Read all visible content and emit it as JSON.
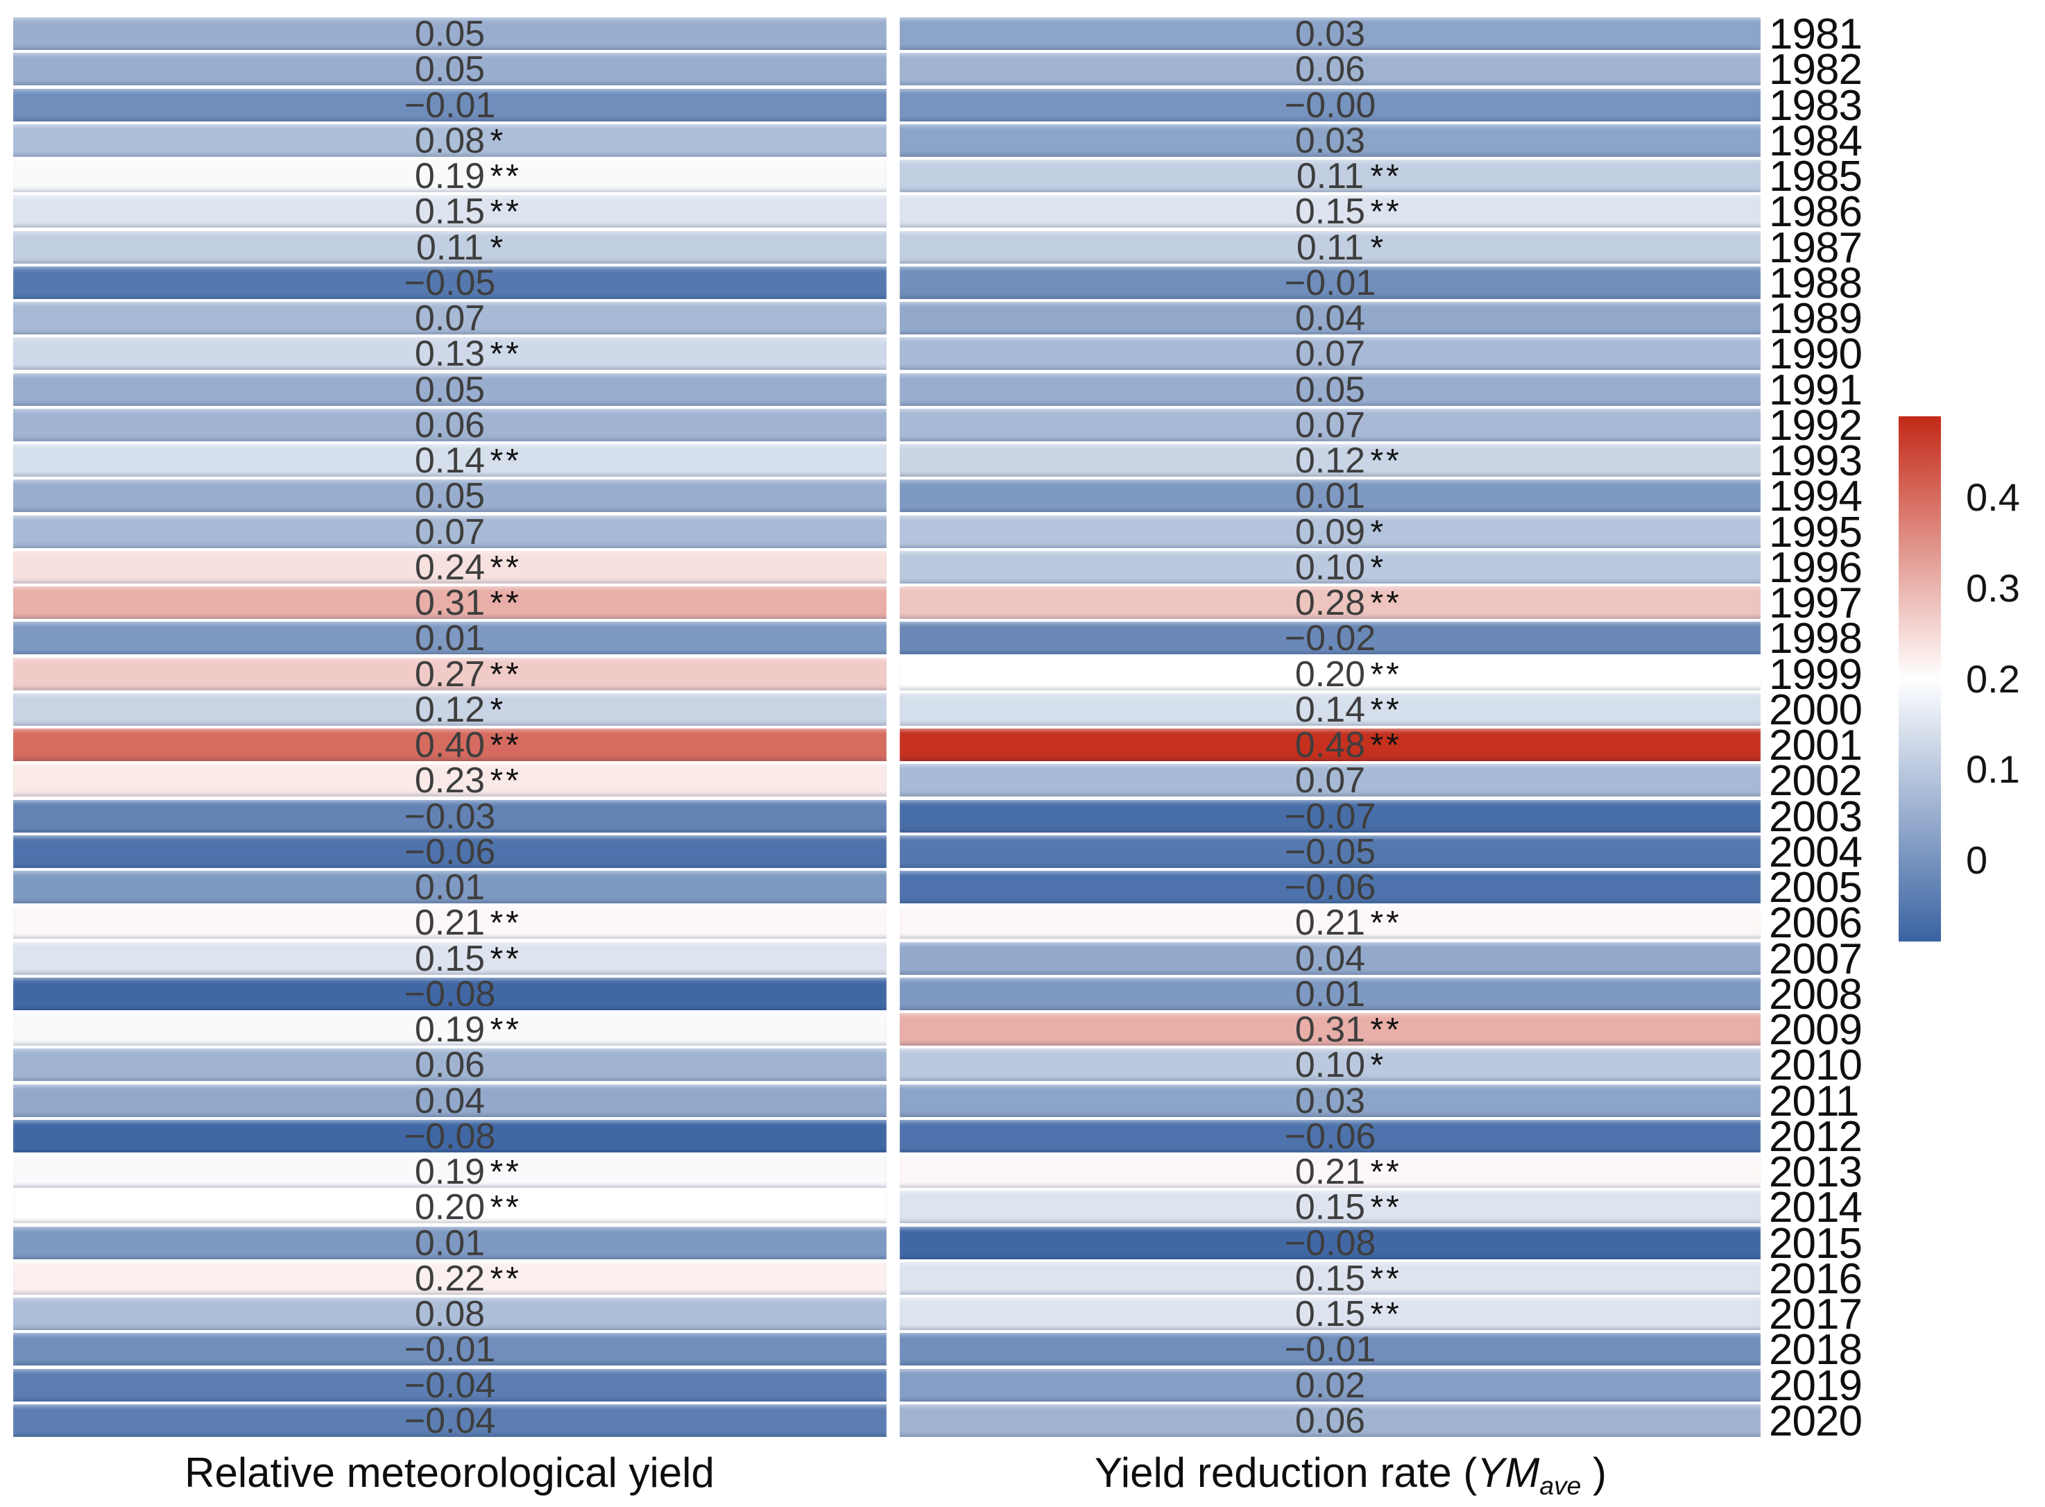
{
  "figure": {
    "left_axis_label": "Relative meteorological yield",
    "right_axis_label_prefix": "Yield reduction rate (",
    "right_axis_label_italic": "YM",
    "right_axis_label_subscript": "ave",
    "right_axis_label_suffix": " )"
  },
  "chart_data": {
    "type": "heatmap",
    "title": "",
    "xlabel_left": "Relative meteorological yield",
    "xlabel_right": "Yield reduction rate (YMave)",
    "legend_position": "right-colorbar",
    "grid": false,
    "years": [
      1981,
      1982,
      1983,
      1984,
      1985,
      1986,
      1987,
      1988,
      1989,
      1990,
      1991,
      1992,
      1993,
      1994,
      1995,
      1996,
      1997,
      1998,
      1999,
      2000,
      2001,
      2002,
      2003,
      2004,
      2005,
      2006,
      2007,
      2008,
      2009,
      2010,
      2011,
      2012,
      2013,
      2014,
      2015,
      2016,
      2017,
      2018,
      2019,
      2020
    ],
    "series": [
      {
        "name": "Relative meteorological yield",
        "cells": [
          {
            "v": 0.05,
            "label": "0.05",
            "stars": ""
          },
          {
            "v": 0.05,
            "label": "0.05",
            "stars": ""
          },
          {
            "v": -0.01,
            "label": "−0.01",
            "stars": ""
          },
          {
            "v": 0.08,
            "label": "0.08",
            "stars": "*"
          },
          {
            "v": 0.19,
            "label": "0.19",
            "stars": "**"
          },
          {
            "v": 0.15,
            "label": "0.15",
            "stars": "**"
          },
          {
            "v": 0.11,
            "label": "0.11",
            "stars": "*"
          },
          {
            "v": -0.05,
            "label": "−0.05",
            "stars": ""
          },
          {
            "v": 0.07,
            "label": "0.07",
            "stars": ""
          },
          {
            "v": 0.13,
            "label": "0.13",
            "stars": "**"
          },
          {
            "v": 0.05,
            "label": "0.05",
            "stars": ""
          },
          {
            "v": 0.06,
            "label": "0.06",
            "stars": ""
          },
          {
            "v": 0.14,
            "label": "0.14",
            "stars": "**"
          },
          {
            "v": 0.05,
            "label": "0.05",
            "stars": ""
          },
          {
            "v": 0.07,
            "label": "0.07",
            "stars": ""
          },
          {
            "v": 0.24,
            "label": "0.24",
            "stars": "**"
          },
          {
            "v": 0.31,
            "label": "0.31",
            "stars": "**"
          },
          {
            "v": 0.01,
            "label": "0.01",
            "stars": ""
          },
          {
            "v": 0.27,
            "label": "0.27",
            "stars": "**"
          },
          {
            "v": 0.12,
            "label": "0.12",
            "stars": "*"
          },
          {
            "v": 0.4,
            "label": "0.40",
            "stars": "**"
          },
          {
            "v": 0.23,
            "label": "0.23",
            "stars": "**"
          },
          {
            "v": -0.03,
            "label": "−0.03",
            "stars": ""
          },
          {
            "v": -0.06,
            "label": "−0.06",
            "stars": ""
          },
          {
            "v": 0.01,
            "label": "0.01",
            "stars": ""
          },
          {
            "v": 0.21,
            "label": "0.21",
            "stars": "**"
          },
          {
            "v": 0.15,
            "label": "0.15",
            "stars": "**"
          },
          {
            "v": -0.08,
            "label": "−0.08",
            "stars": ""
          },
          {
            "v": 0.19,
            "label": "0.19",
            "stars": "**"
          },
          {
            "v": 0.06,
            "label": "0.06",
            "stars": ""
          },
          {
            "v": 0.04,
            "label": "0.04",
            "stars": ""
          },
          {
            "v": -0.08,
            "label": "−0.08",
            "stars": ""
          },
          {
            "v": 0.19,
            "label": "0.19",
            "stars": "**"
          },
          {
            "v": 0.2,
            "label": "0.20",
            "stars": "**"
          },
          {
            "v": 0.01,
            "label": "0.01",
            "stars": ""
          },
          {
            "v": 0.22,
            "label": "0.22",
            "stars": "**"
          },
          {
            "v": 0.08,
            "label": "0.08",
            "stars": ""
          },
          {
            "v": -0.01,
            "label": "−0.01",
            "stars": ""
          },
          {
            "v": -0.04,
            "label": "−0.04",
            "stars": ""
          },
          {
            "v": -0.04,
            "label": "−0.04",
            "stars": ""
          }
        ]
      },
      {
        "name": "Yield reduction rate (YMave)",
        "cells": [
          {
            "v": 0.03,
            "label": "0.03",
            "stars": ""
          },
          {
            "v": 0.06,
            "label": "0.06",
            "stars": ""
          },
          {
            "v": -0.0,
            "label": "−0.00",
            "stars": ""
          },
          {
            "v": 0.03,
            "label": "0.03",
            "stars": ""
          },
          {
            "v": 0.11,
            "label": "0.11",
            "stars": "**"
          },
          {
            "v": 0.15,
            "label": "0.15",
            "stars": "**"
          },
          {
            "v": 0.11,
            "label": "0.11",
            "stars": "*"
          },
          {
            "v": -0.01,
            "label": "−0.01",
            "stars": ""
          },
          {
            "v": 0.04,
            "label": "0.04",
            "stars": ""
          },
          {
            "v": 0.07,
            "label": "0.07",
            "stars": ""
          },
          {
            "v": 0.05,
            "label": "0.05",
            "stars": ""
          },
          {
            "v": 0.07,
            "label": "0.07",
            "stars": ""
          },
          {
            "v": 0.12,
            "label": "0.12",
            "stars": "**"
          },
          {
            "v": 0.01,
            "label": "0.01",
            "stars": ""
          },
          {
            "v": 0.09,
            "label": "0.09",
            "stars": "*"
          },
          {
            "v": 0.1,
            "label": "0.10",
            "stars": "*"
          },
          {
            "v": 0.28,
            "label": "0.28",
            "stars": "**"
          },
          {
            "v": -0.02,
            "label": "−0.02",
            "stars": ""
          },
          {
            "v": 0.2,
            "label": "0.20",
            "stars": "**"
          },
          {
            "v": 0.14,
            "label": "0.14",
            "stars": "**"
          },
          {
            "v": 0.48,
            "label": "0.48",
            "stars": "**"
          },
          {
            "v": 0.07,
            "label": "0.07",
            "stars": ""
          },
          {
            "v": -0.07,
            "label": "−0.07",
            "stars": ""
          },
          {
            "v": -0.05,
            "label": "−0.05",
            "stars": ""
          },
          {
            "v": -0.06,
            "label": "−0.06",
            "stars": ""
          },
          {
            "v": 0.21,
            "label": "0.21",
            "stars": "**"
          },
          {
            "v": 0.04,
            "label": "0.04",
            "stars": ""
          },
          {
            "v": 0.01,
            "label": "0.01",
            "stars": ""
          },
          {
            "v": 0.31,
            "label": "0.31",
            "stars": "**"
          },
          {
            "v": 0.1,
            "label": "0.10",
            "stars": "*"
          },
          {
            "v": 0.03,
            "label": "0.03",
            "stars": ""
          },
          {
            "v": -0.06,
            "label": "−0.06",
            "stars": ""
          },
          {
            "v": 0.21,
            "label": "0.21",
            "stars": "**"
          },
          {
            "v": 0.15,
            "label": "0.15",
            "stars": "**"
          },
          {
            "v": -0.08,
            "label": "−0.08",
            "stars": ""
          },
          {
            "v": 0.15,
            "label": "0.15",
            "stars": "**"
          },
          {
            "v": 0.15,
            "label": "0.15",
            "stars": "**"
          },
          {
            "v": -0.01,
            "label": "−0.01",
            "stars": ""
          },
          {
            "v": 0.02,
            "label": "0.02",
            "stars": ""
          },
          {
            "v": 0.06,
            "label": "0.06",
            "stars": ""
          }
        ]
      }
    ],
    "colormap": {
      "stops": [
        {
          "value": -0.09,
          "color": "#3a63a2"
        },
        {
          "value": 0.2,
          "color": "#ffffff"
        },
        {
          "value": 0.49,
          "color": "#c32917"
        }
      ]
    },
    "colorbar": {
      "vmin": -0.09,
      "vmax": 0.49,
      "ticks": [
        {
          "value": 0.4,
          "label": "0.4"
        },
        {
          "value": 0.3,
          "label": "0.3"
        },
        {
          "value": 0.2,
          "label": "0.2"
        },
        {
          "value": 0.1,
          "label": "0.1"
        },
        {
          "value": 0.0,
          "label": "0"
        }
      ]
    }
  }
}
